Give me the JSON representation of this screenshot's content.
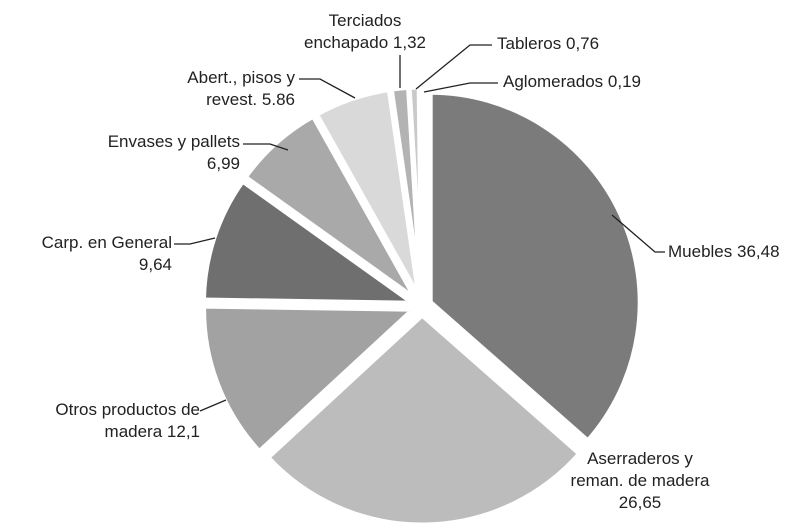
{
  "chart_data": {
    "type": "pie",
    "categories": [
      "Muebles",
      "Aserraderos y reman. de madera",
      "Otros productos de madera",
      "Carp. en General",
      "Envases y pallets",
      "Abert., pisos y revest.",
      "Terciados enchapado",
      "Tableros",
      "Aglomerados"
    ],
    "values": [
      36.48,
      26.65,
      12.1,
      9.64,
      6.99,
      5.86,
      1.32,
      0.76,
      0.19
    ],
    "value_labels": [
      "36,48",
      "26,65",
      "12,1",
      "9,64",
      "6,99",
      "5.86",
      "1,32",
      "0,76",
      "0,19"
    ],
    "colors": [
      "#7b7b7b",
      "#bcbcbc",
      "#a2a2a2",
      "#6f6f6f",
      "#a9a9a9",
      "#d9d9d9",
      "#b3b3b3",
      "#c9c9c9",
      "#e2e2e2"
    ]
  }
}
